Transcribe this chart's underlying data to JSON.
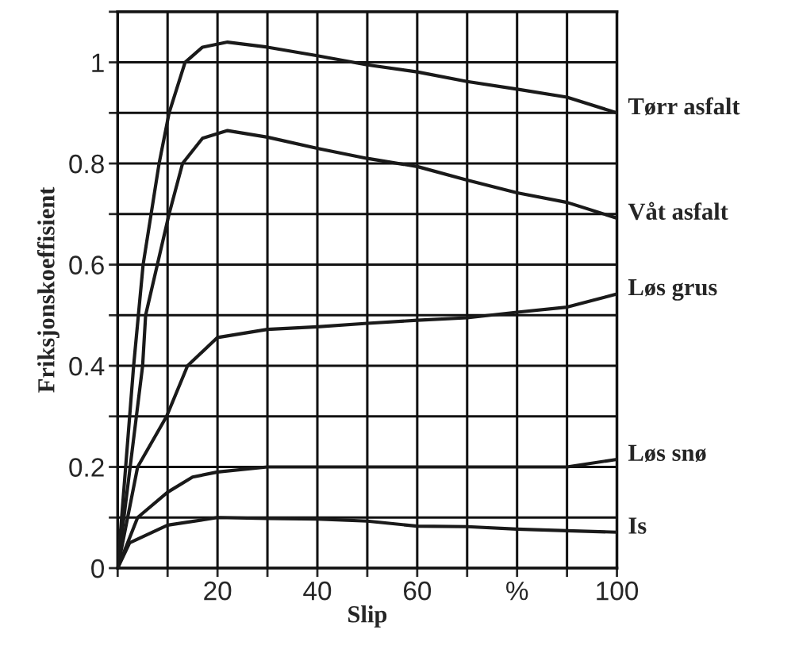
{
  "chart_data": {
    "type": "line",
    "xlabel": "Slip",
    "ylabel": "Friksjonskoeffisient",
    "xlim": [
      0,
      100
    ],
    "ylim": [
      0,
      1.1
    ],
    "xticks": [
      {
        "value": 0,
        "label": null
      },
      {
        "value": 10,
        "label": null
      },
      20,
      {
        "value": 30,
        "label": null
      },
      40,
      {
        "value": 50,
        "label": null
      },
      60,
      {
        "value": 70,
        "label": null
      },
      {
        "value": 80,
        "label": "%"
      },
      {
        "value": 90,
        "label": null
      },
      100
    ],
    "yticks": [
      0,
      {
        "value": 0.1,
        "label": null
      },
      0.2,
      {
        "value": 0.3,
        "label": null
      },
      0.4,
      {
        "value": 0.5,
        "label": null
      },
      0.6,
      {
        "value": 0.7,
        "label": null
      },
      0.8,
      {
        "value": 0.9,
        "label": null
      },
      1,
      {
        "value": 1.1,
        "label": null
      }
    ],
    "grid": true,
    "legend": false,
    "marker": "none",
    "line_style": "solid",
    "series": [
      {
        "name": "Tørr asfalt",
        "color": "#1a1a1a",
        "x": [
          0,
          3.2,
          5.1,
          8.3,
          10.3,
          13.5,
          17,
          22,
          30,
          40,
          50,
          60,
          70,
          80,
          90,
          100
        ],
        "values": [
          0,
          0.4,
          0.6,
          0.8,
          0.9,
          1.0,
          1.03,
          1.04,
          1.03,
          1.013,
          0.995,
          0.981,
          0.962,
          0.947,
          0.931,
          0.9
        ]
      },
      {
        "name": "Våt asfalt",
        "color": "#1a1a1a",
        "x": [
          0,
          5,
          5.6,
          10.3,
          13,
          17,
          22,
          30,
          40,
          50,
          60,
          70,
          80,
          90,
          100
        ],
        "values": [
          0,
          0.4,
          0.5,
          0.7,
          0.8,
          0.85,
          0.865,
          0.852,
          0.83,
          0.81,
          0.794,
          0.767,
          0.742,
          0.723,
          0.692
        ]
      },
      {
        "name": "Løs grus",
        "color": "#1a1a1a",
        "x": [
          0,
          4,
          9.8,
          14,
          20,
          30,
          40,
          50,
          60,
          70,
          80,
          90,
          100
        ],
        "values": [
          0,
          0.2,
          0.3,
          0.4,
          0.456,
          0.472,
          0.477,
          0.484,
          0.49,
          0.495,
          0.506,
          0.516,
          0.542
        ]
      },
      {
        "name": "Løs snø",
        "color": "#1a1a1a",
        "x": [
          0,
          4,
          10,
          15,
          20,
          30,
          40,
          50,
          60,
          70,
          80,
          90,
          100
        ],
        "values": [
          0,
          0.1,
          0.15,
          0.18,
          0.19,
          0.2,
          0.2,
          0.2,
          0.2,
          0.2,
          0.2,
          0.2,
          0.215
        ]
      },
      {
        "name": "Is",
        "color": "#1a1a1a",
        "x": [
          0,
          2.4,
          10,
          20,
          30,
          40,
          50,
          60,
          70,
          80,
          90,
          100
        ],
        "values": [
          0,
          0.05,
          0.085,
          0.1,
          0.098,
          0.097,
          0.093,
          0.083,
          0.082,
          0.077,
          0.074,
          0.071
        ]
      }
    ]
  }
}
